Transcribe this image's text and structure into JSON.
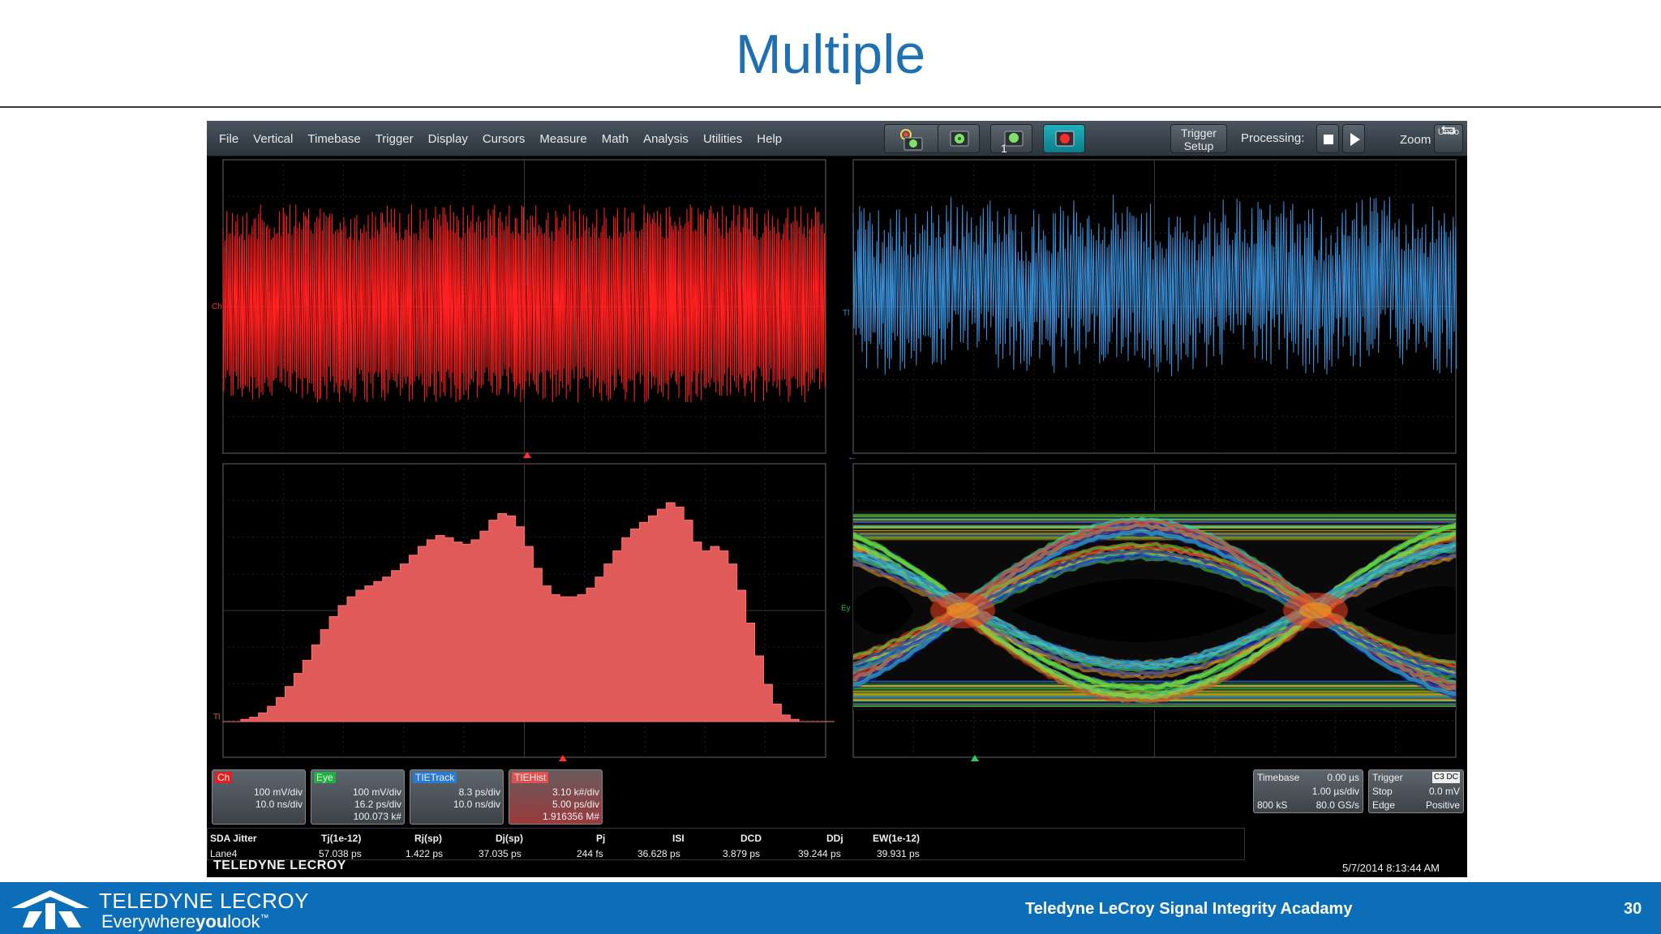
{
  "slide": {
    "title": "Multiple",
    "footer_academy": "Teledyne LeCroy Signal Integrity Acadamy",
    "page_number": "30",
    "brand_name": "TELEDYNE LECROY",
    "brand_tagline_1": "Everywhere",
    "brand_tagline_2": "you",
    "brand_tagline_3": "look",
    "brand_tm": "™"
  },
  "scope": {
    "menu": [
      "File",
      "Vertical",
      "Timebase",
      "Trigger",
      "Display",
      "Cursors",
      "Measure",
      "Math",
      "Analysis",
      "Utilities",
      "Help"
    ],
    "trigger_setup": [
      "Trigger",
      "Setup"
    ],
    "processing_label": "Processing:",
    "zoom_label": "Zoom",
    "undo_label": "Undo",
    "channel_marks": {
      "top_left": "Ch",
      "top_right": "Tl",
      "bottom_left": "Tl",
      "bottom_right": "Ey"
    },
    "descriptors": [
      {
        "tag": "Ch",
        "color": "#e02020",
        "l1": "100 mV/div",
        "l2": "10.0 ns/div",
        "l3": ""
      },
      {
        "tag": "Eye",
        "color": "#20b040",
        "l1": "100 mV/div",
        "l2": "16.2 ps/div",
        "l3": "100.073 k#"
      },
      {
        "tag": "TIETrack",
        "color": "#2a7ad0",
        "l1": "8.3 ps/div",
        "l2": "10.0 ns/div",
        "l3": ""
      },
      {
        "tag": "TIEHist",
        "color": "#e05050",
        "l1": "3.10 k#/div",
        "l2": "5.00 ps/div",
        "l3": "1.916356 M#"
      }
    ],
    "timebase": {
      "label": "Timebase",
      "delay": "0.00 µs",
      "per_div": "1.00 µs/div",
      "samples": "800 kS",
      "rate": "80.0 GS/s"
    },
    "trigger": {
      "label": "Trigger",
      "badges": "C3 DC",
      "mode": "Stop",
      "level": "0.0 mV",
      "type": "Edge",
      "slope": "Positive"
    },
    "measurements": {
      "headers": [
        "SDA Jitter",
        "Tj(1e-12)",
        "Rj(sp)",
        "Dj(sp)",
        "Pj",
        "ISI",
        "DCD",
        "DDj",
        "EW(1e-12)"
      ],
      "values": [
        "Lane4",
        "57.038 ps",
        "1.422 ps",
        "37.035 ps",
        "244 fs",
        "36.628 ps",
        "3.879 ps",
        "39.244 ps",
        "39.931 ps"
      ]
    },
    "scope_brand": "TELEDYNE LECROY",
    "datetime": "5/7/2014 8:13:44 AM"
  },
  "colors": {
    "title": "#1f6fb3",
    "footer": "#0c6eb9",
    "channel_trace": "#ff2020",
    "tie_trace": "#3a8fd8",
    "histogram": "#e05a5a"
  },
  "histogram_profile": [
    0,
    0,
    1,
    2,
    4,
    7,
    11,
    16,
    22,
    28,
    35,
    42,
    48,
    53,
    57,
    60,
    62,
    64,
    66,
    69,
    72,
    76,
    80,
    83,
    85,
    84,
    82,
    81,
    83,
    87,
    92,
    95,
    94,
    89,
    80,
    70,
    62,
    58,
    57,
    57,
    58,
    61,
    66,
    72,
    78,
    84,
    88,
    91,
    94,
    97,
    100,
    98,
    92,
    82,
    78,
    80,
    78,
    72,
    60,
    45,
    30,
    17,
    8,
    3,
    1,
    0,
    0,
    0,
    0
  ],
  "icons": [
    "color-sweep-icon",
    "screen-capture-icon",
    "single-capture-icon",
    "record-icon",
    "stop-icon",
    "play-icon",
    "undo-icon",
    "teledyne-logo"
  ]
}
